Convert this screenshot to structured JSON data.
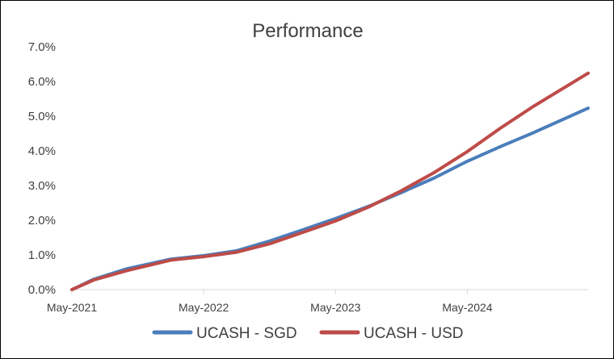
{
  "chart_data": {
    "type": "line",
    "title": "Performance",
    "xlabel": "",
    "ylabel": "",
    "x_tick_labels": [
      "May-2021",
      "May-2022",
      "May-2023",
      "May-2024"
    ],
    "x_ticks_months": [
      0,
      12,
      24,
      36
    ],
    "y_tick_labels": [
      "0.0%",
      "1.0%",
      "2.0%",
      "3.0%",
      "4.0%",
      "5.0%",
      "6.0%",
      "7.0%"
    ],
    "ylim": [
      0,
      7
    ],
    "xlim_months": [
      0,
      47
    ],
    "grid": false,
    "legend_position": "bottom",
    "series": [
      {
        "name": "UCASH - SGD",
        "color": "#4a7ebb",
        "points": [
          {
            "x": 0,
            "y": 0.0
          },
          {
            "x": 2,
            "y": 0.3
          },
          {
            "x": 5,
            "y": 0.6
          },
          {
            "x": 9,
            "y": 0.88
          },
          {
            "x": 12,
            "y": 0.98
          },
          {
            "x": 15,
            "y": 1.12
          },
          {
            "x": 18,
            "y": 1.4
          },
          {
            "x": 21,
            "y": 1.72
          },
          {
            "x": 24,
            "y": 2.05
          },
          {
            "x": 27,
            "y": 2.4
          },
          {
            "x": 30,
            "y": 2.8
          },
          {
            "x": 33,
            "y": 3.22
          },
          {
            "x": 36,
            "y": 3.7
          },
          {
            "x": 39,
            "y": 4.12
          },
          {
            "x": 42,
            "y": 4.52
          },
          {
            "x": 47,
            "y": 5.23
          }
        ]
      },
      {
        "name": "UCASH - USD",
        "color": "#be4b48",
        "points": [
          {
            "x": 0,
            "y": 0.0
          },
          {
            "x": 2,
            "y": 0.28
          },
          {
            "x": 5,
            "y": 0.55
          },
          {
            "x": 9,
            "y": 0.85
          },
          {
            "x": 12,
            "y": 0.95
          },
          {
            "x": 15,
            "y": 1.08
          },
          {
            "x": 18,
            "y": 1.32
          },
          {
            "x": 21,
            "y": 1.65
          },
          {
            "x": 24,
            "y": 1.98
          },
          {
            "x": 27,
            "y": 2.38
          },
          {
            "x": 30,
            "y": 2.85
          },
          {
            "x": 33,
            "y": 3.38
          },
          {
            "x": 36,
            "y": 3.98
          },
          {
            "x": 39,
            "y": 4.65
          },
          {
            "x": 42,
            "y": 5.28
          },
          {
            "x": 47,
            "y": 6.24
          }
        ]
      }
    ]
  }
}
